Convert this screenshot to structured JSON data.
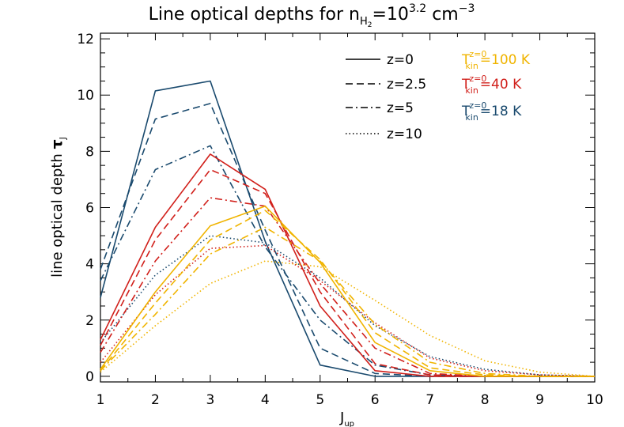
{
  "chart_data": {
    "type": "line",
    "title": {
      "prefix": "Line optical depths for n",
      "sub": "H",
      "subsub": "2",
      "mid": "=10",
      "sup": "3.2",
      "after": " cm",
      "sup2": "−3"
    },
    "xlabel": {
      "main": "J",
      "sub": "up"
    },
    "ylabel": {
      "main": "line optical depth ",
      "symbol": "τ",
      "sub": "J"
    },
    "xlim": [
      1,
      10
    ],
    "ylim": [
      -0.2,
      12.2
    ],
    "x_ticks": [
      1,
      2,
      3,
      4,
      5,
      6,
      7,
      8,
      9,
      10
    ],
    "y_ticks": [
      0,
      2,
      4,
      6,
      8,
      10,
      12
    ],
    "x": [
      1,
      2,
      3,
      4,
      5,
      6,
      7,
      8,
      9,
      10
    ],
    "linestyle_legend": [
      {
        "label": "z=0",
        "dash": "solid"
      },
      {
        "label": "z=2.5",
        "dash": "dashed"
      },
      {
        "label": "z=5",
        "dash": "dashdot"
      },
      {
        "label": "z=10",
        "dash": "dotted"
      }
    ],
    "color_legend": [
      {
        "prefix": "T",
        "sub": "kin",
        "sup": "z=0",
        "value": "=100 K",
        "color": "#f0b400"
      },
      {
        "prefix": "T",
        "sub": "kin",
        "sup": "z=0",
        "value": "=40 K",
        "color": "#d1201b"
      },
      {
        "prefix": "T",
        "sub": "kin",
        "sup": "z=0",
        "value": "=18 K",
        "color": "#1a4a6e"
      }
    ],
    "series": [
      {
        "temp": "18 K",
        "z": "0",
        "color": "#1a4a6e",
        "dash": "solid",
        "values": [
          2.8,
          10.15,
          10.5,
          4.8,
          0.4,
          0.0,
          0.0,
          0.0,
          0.0,
          0.0
        ]
      },
      {
        "temp": "18 K",
        "z": "2.5",
        "color": "#1a4a6e",
        "dash": "dashed",
        "values": [
          3.8,
          9.15,
          9.7,
          5.2,
          1.0,
          0.1,
          0.0,
          0.0,
          0.0,
          0.0
        ]
      },
      {
        "temp": "18 K",
        "z": "5",
        "color": "#1a4a6e",
        "dash": "dashdot",
        "values": [
          3.4,
          7.35,
          8.2,
          4.6,
          2.0,
          0.4,
          0.05,
          0.0,
          0.0,
          0.0
        ]
      },
      {
        "temp": "18 K",
        "z": "10",
        "color": "#1a4a6e",
        "dash": "dotted",
        "values": [
          1.2,
          3.6,
          5.0,
          4.75,
          3.5,
          1.8,
          0.7,
          0.25,
          0.05,
          0.0
        ]
      },
      {
        "temp": "40 K",
        "z": "0",
        "color": "#d1201b",
        "dash": "solid",
        "values": [
          1.3,
          5.3,
          7.9,
          6.65,
          2.5,
          0.2,
          0.0,
          0.0,
          0.0,
          0.0
        ]
      },
      {
        "temp": "40 K",
        "z": "2.5",
        "color": "#d1201b",
        "dash": "dashed",
        "values": [
          1.1,
          4.85,
          7.35,
          6.5,
          3.0,
          0.45,
          0.05,
          0.0,
          0.0,
          0.0
        ]
      },
      {
        "temp": "40 K",
        "z": "5",
        "color": "#d1201b",
        "dash": "dashdot",
        "values": [
          0.85,
          4.1,
          6.35,
          6.05,
          3.3,
          1.0,
          0.1,
          0.0,
          0.0,
          0.0
        ]
      },
      {
        "temp": "40 K",
        "z": "10",
        "color": "#d1201b",
        "dash": "dotted",
        "values": [
          0.5,
          2.9,
          4.55,
          4.65,
          3.4,
          1.9,
          0.65,
          0.2,
          0.05,
          0.0
        ]
      },
      {
        "temp": "100 K",
        "z": "0",
        "color": "#f0b400",
        "dash": "solid",
        "values": [
          0.25,
          3.0,
          5.35,
          6.05,
          4.05,
          1.2,
          0.2,
          0.0,
          0.0,
          0.0
        ]
      },
      {
        "temp": "100 K",
        "z": "2.5",
        "color": "#f0b400",
        "dash": "dashed",
        "values": [
          0.2,
          2.6,
          4.85,
          5.9,
          4.15,
          1.55,
          0.3,
          0.05,
          0.0,
          0.0
        ]
      },
      {
        "temp": "100 K",
        "z": "5",
        "color": "#f0b400",
        "dash": "dashdot",
        "values": [
          0.2,
          2.2,
          4.35,
          5.3,
          4.1,
          1.85,
          0.5,
          0.1,
          0.0,
          0.0
        ]
      },
      {
        "temp": "100 K",
        "z": "10",
        "color": "#f0b400",
        "dash": "dotted",
        "values": [
          0.15,
          1.8,
          3.3,
          4.1,
          3.9,
          2.7,
          1.45,
          0.55,
          0.15,
          0.0
        ]
      }
    ],
    "grid": false,
    "legend_position": "top-right"
  }
}
